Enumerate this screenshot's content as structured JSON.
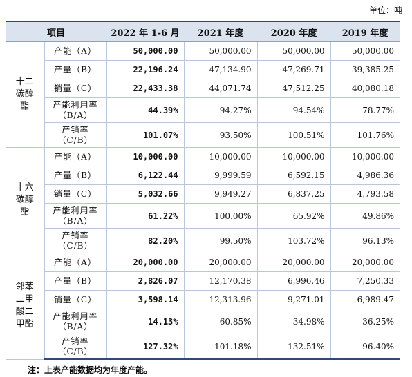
{
  "unit_label": "单位：吨",
  "header": {
    "item": "项目",
    "col1": "2022 年 1-6 月",
    "col2": "2021 年度",
    "col3": "2020 年度",
    "col4": "2019 年度"
  },
  "groups": [
    {
      "name": "十二\n碳醇\n酯",
      "rows": [
        {
          "item": "产能（A）",
          "v1": "50,000.00",
          "v2": "50,000.00",
          "v3": "50,000.00",
          "v4": "50,000.00"
        },
        {
          "item": "产量（B）",
          "v1": "22,196.24",
          "v2": "47,134.90",
          "v3": "47,269.71",
          "v4": "39,385.25"
        },
        {
          "item": "销量（C）",
          "v1": "22,433.38",
          "v2": "44,071.74",
          "v3": "47,512.25",
          "v4": "40,080.18"
        },
        {
          "item": "产能利用率\n（B/A）",
          "v1": "44.39%",
          "v2": "94.27%",
          "v3": "94.54%",
          "v4": "78.77%"
        },
        {
          "item": "产销率\n（C/B）",
          "v1": "101.07%",
          "v2": "93.50%",
          "v3": "100.51%",
          "v4": "101.76%"
        }
      ]
    },
    {
      "name": "十六\n碳醇\n酯",
      "rows": [
        {
          "item": "产能（A）",
          "v1": "10,000.00",
          "v2": "10,000.00",
          "v3": "10,000.00",
          "v4": "10,000.00"
        },
        {
          "item": "产量（B）",
          "v1": "6,122.44",
          "v2": "9,999.59",
          "v3": "6,592.15",
          "v4": "4,986.36"
        },
        {
          "item": "销量（C）",
          "v1": "5,032.66",
          "v2": "9,949.27",
          "v3": "6,837.25",
          "v4": "4,793.58"
        },
        {
          "item": "产能利用率\n（B/A）",
          "v1": "61.22%",
          "v2": "100.00%",
          "v3": "65.92%",
          "v4": "49.86%"
        },
        {
          "item": "产销率\n（C/B）",
          "v1": "82.20%",
          "v2": "99.50%",
          "v3": "103.72%",
          "v4": "96.13%"
        }
      ]
    },
    {
      "name": "邻苯\n二甲\n酸二\n甲酯",
      "rows": [
        {
          "item": "产能（A）",
          "v1": "20,000.00",
          "v2": "20,000.00",
          "v3": "20,000.00",
          "v4": "20,000.00"
        },
        {
          "item": "产量（B）",
          "v1": "2,826.07",
          "v2": "12,170.38",
          "v3": "6,996.46",
          "v4": "7,250.33"
        },
        {
          "item": "销量（C）",
          "v1": "3,598.14",
          "v2": "12,313.96",
          "v3": "9,271.01",
          "v4": "6,989.47"
        },
        {
          "item": "产能利用率\n（B/A）",
          "v1": "14.13%",
          "v2": "60.85%",
          "v3": "34.98%",
          "v4": "36.25%"
        },
        {
          "item": "产销率\n（C/B）",
          "v1": "127.32%",
          "v2": "101.18%",
          "v3": "132.51%",
          "v4": "96.40%"
        }
      ]
    }
  ],
  "note": "注：上表产能数据均为年度产能。"
}
